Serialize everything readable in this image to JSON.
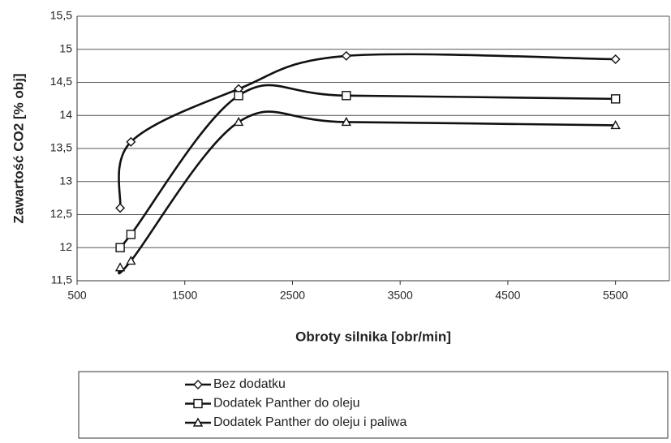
{
  "chart_data": {
    "type": "line",
    "y_label": "Zawartość CO2 [% obj]",
    "x_label": "Obroty silnika [obr/min]",
    "x": [
      900,
      1000,
      2000,
      3000,
      5500
    ],
    "series": [
      {
        "name": "Bez dodatku",
        "color": "#111111",
        "marker": "diamond",
        "values": [
          12.6,
          13.6,
          14.4,
          14.9,
          14.85
        ]
      },
      {
        "name": "Dodatek Panther do oleju",
        "color": "#111111",
        "marker": "square",
        "values": [
          12.0,
          12.2,
          14.3,
          14.3,
          14.25
        ]
      },
      {
        "name": "Dodatek Panther do oleju i paliwa",
        "color": "#111111",
        "marker": "triangle",
        "values": [
          11.7,
          11.8,
          13.9,
          13.9,
          13.85
        ]
      }
    ],
    "xlim": [
      500,
      6000
    ],
    "xticks": [
      500,
      1500,
      2500,
      3500,
      4500,
      5500
    ],
    "ylim": [
      11.5,
      15.5
    ],
    "yticks": [
      {
        "value": 11.5,
        "label": "11,5"
      },
      12,
      {
        "value": 12.5,
        "label": "12,5"
      },
      13,
      {
        "value": 13.5,
        "label": "13,5"
      },
      14,
      {
        "value": 14.5,
        "label": "14,5"
      },
      15,
      {
        "value": 15.5,
        "label": "15,5"
      }
    ],
    "grid": true,
    "smooth": true,
    "legend": "bottom"
  }
}
